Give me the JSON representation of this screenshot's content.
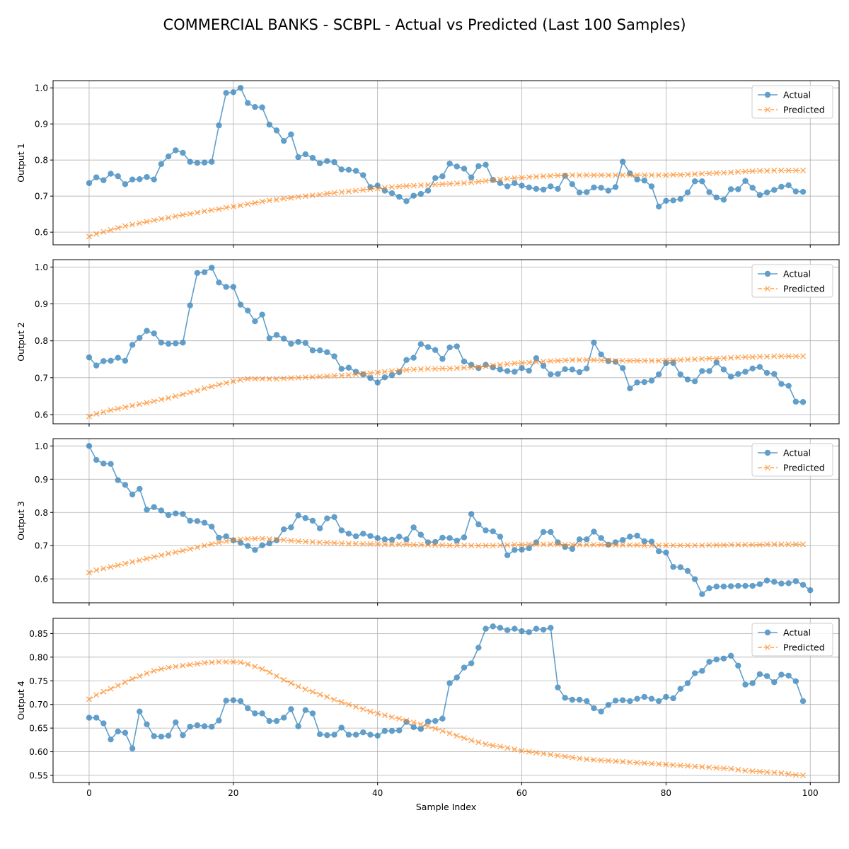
{
  "title": "COMMERCIAL BANKS - SCBPL - Actual vs Predicted (Last 100 Samples)",
  "colors": {
    "actual": "#1f77b4",
    "predicted": "#ff7f0e",
    "grid": "#b0b0b0"
  },
  "chart_data": [
    {
      "type": "line",
      "ylabel": "Output 1",
      "xlabel": "",
      "xlim": [
        -5,
        104
      ],
      "ylim": [
        0.565,
        1.02
      ],
      "xticks": [
        0,
        20,
        40,
        60,
        80,
        100
      ],
      "yticks": [
        0.6,
        0.7,
        0.8,
        0.9,
        1.0
      ],
      "ytick_labels": [
        "0.6",
        "0.7",
        "0.8",
        "0.9",
        "1.0"
      ],
      "grid": true,
      "legend": "upper right",
      "series": [
        {
          "name": "Actual",
          "marker": "circle",
          "values": [
            0.736,
            0.752,
            0.744,
            0.762,
            0.755,
            0.733,
            0.746,
            0.747,
            0.753,
            0.746,
            0.789,
            0.81,
            0.827,
            0.82,
            0.795,
            0.792,
            0.793,
            0.795,
            0.896,
            0.986,
            0.988,
            1.0,
            0.958,
            0.947,
            0.946,
            0.898,
            0.882,
            0.853,
            0.871,
            0.808,
            0.816,
            0.806,
            0.791,
            0.797,
            0.794,
            0.774,
            0.773,
            0.77,
            0.758,
            0.725,
            0.729,
            0.715,
            0.708,
            0.698,
            0.686,
            0.701,
            0.706,
            0.715,
            0.75,
            0.755,
            0.79,
            0.782,
            0.776,
            0.752,
            0.783,
            0.787,
            0.745,
            0.736,
            0.727,
            0.736,
            0.729,
            0.724,
            0.72,
            0.718,
            0.727,
            0.72,
            0.756,
            0.733,
            0.71,
            0.711,
            0.724,
            0.723,
            0.715,
            0.725,
            0.795,
            0.763,
            0.746,
            0.743,
            0.727,
            0.671,
            0.687,
            0.688,
            0.692,
            0.71,
            0.741,
            0.741,
            0.711,
            0.696,
            0.69,
            0.719,
            0.719,
            0.742,
            0.723,
            0.703,
            0.71,
            0.717,
            0.726,
            0.73,
            0.713,
            0.712
          ]
        },
        {
          "name": "Predicted",
          "marker": "x",
          "values": [
            0.588,
            0.595,
            0.601,
            0.606,
            0.612,
            0.617,
            0.621,
            0.625,
            0.629,
            0.633,
            0.637,
            0.64,
            0.644,
            0.648,
            0.651,
            0.654,
            0.658,
            0.661,
            0.664,
            0.668,
            0.671,
            0.674,
            0.678,
            0.681,
            0.685,
            0.688,
            0.69,
            0.693,
            0.695,
            0.698,
            0.7,
            0.702,
            0.704,
            0.707,
            0.709,
            0.711,
            0.713,
            0.715,
            0.717,
            0.719,
            0.721,
            0.723,
            0.725,
            0.727,
            0.728,
            0.729,
            0.73,
            0.731,
            0.732,
            0.733,
            0.734,
            0.735,
            0.736,
            0.738,
            0.74,
            0.742,
            0.744,
            0.746,
            0.748,
            0.75,
            0.751,
            0.753,
            0.754,
            0.755,
            0.756,
            0.757,
            0.757,
            0.758,
            0.758,
            0.758,
            0.758,
            0.758,
            0.758,
            0.758,
            0.758,
            0.758,
            0.758,
            0.758,
            0.758,
            0.758,
            0.758,
            0.759,
            0.759,
            0.76,
            0.761,
            0.762,
            0.763,
            0.764,
            0.765,
            0.766,
            0.767,
            0.768,
            0.769,
            0.77,
            0.77,
            0.771,
            0.771,
            0.771,
            0.771,
            0.771
          ]
        }
      ]
    },
    {
      "type": "line",
      "ylabel": "Output 2",
      "xlabel": "",
      "xlim": [
        -5,
        104
      ],
      "ylim": [
        0.575,
        1.02
      ],
      "xticks": [
        0,
        20,
        40,
        60,
        80,
        100
      ],
      "yticks": [
        0.6,
        0.7,
        0.8,
        0.9,
        1.0
      ],
      "ytick_labels": [
        "0.6",
        "0.7",
        "0.8",
        "0.9",
        "1.0"
      ],
      "grid": true,
      "legend": "upper right",
      "series": [
        {
          "name": "Actual",
          "marker": "circle",
          "values": [
            0.755,
            0.733,
            0.745,
            0.746,
            0.754,
            0.746,
            0.789,
            0.808,
            0.827,
            0.82,
            0.795,
            0.792,
            0.793,
            0.795,
            0.896,
            0.984,
            0.986,
            0.998,
            0.958,
            0.946,
            0.946,
            0.898,
            0.882,
            0.853,
            0.871,
            0.807,
            0.816,
            0.806,
            0.792,
            0.797,
            0.794,
            0.774,
            0.774,
            0.769,
            0.758,
            0.724,
            0.727,
            0.716,
            0.709,
            0.699,
            0.687,
            0.701,
            0.707,
            0.715,
            0.748,
            0.754,
            0.791,
            0.783,
            0.775,
            0.751,
            0.782,
            0.785,
            0.744,
            0.735,
            0.726,
            0.735,
            0.728,
            0.722,
            0.718,
            0.716,
            0.726,
            0.719,
            0.753,
            0.732,
            0.709,
            0.71,
            0.723,
            0.722,
            0.715,
            0.725,
            0.795,
            0.763,
            0.745,
            0.743,
            0.726,
            0.671,
            0.687,
            0.688,
            0.692,
            0.709,
            0.74,
            0.74,
            0.709,
            0.695,
            0.69,
            0.718,
            0.718,
            0.741,
            0.722,
            0.703,
            0.71,
            0.716,
            0.725,
            0.729,
            0.713,
            0.71,
            0.683,
            0.678,
            0.635,
            0.634
          ]
        },
        {
          "name": "Predicted",
          "marker": "x",
          "values": [
            0.595,
            0.602,
            0.607,
            0.612,
            0.616,
            0.62,
            0.624,
            0.628,
            0.632,
            0.636,
            0.641,
            0.645,
            0.65,
            0.655,
            0.66,
            0.665,
            0.671,
            0.676,
            0.681,
            0.686,
            0.69,
            0.694,
            0.697,
            0.697,
            0.697,
            0.697,
            0.697,
            0.698,
            0.699,
            0.7,
            0.701,
            0.702,
            0.703,
            0.704,
            0.705,
            0.706,
            0.707,
            0.709,
            0.711,
            0.712,
            0.714,
            0.716,
            0.718,
            0.72,
            0.721,
            0.722,
            0.723,
            0.724,
            0.724,
            0.725,
            0.725,
            0.726,
            0.727,
            0.728,
            0.729,
            0.731,
            0.733,
            0.735,
            0.737,
            0.739,
            0.74,
            0.741,
            0.743,
            0.744,
            0.745,
            0.746,
            0.747,
            0.748,
            0.748,
            0.748,
            0.748,
            0.747,
            0.747,
            0.746,
            0.746,
            0.746,
            0.746,
            0.746,
            0.746,
            0.746,
            0.747,
            0.747,
            0.748,
            0.749,
            0.75,
            0.751,
            0.752,
            0.752,
            0.753,
            0.754,
            0.755,
            0.756,
            0.756,
            0.757,
            0.757,
            0.758,
            0.758,
            0.758,
            0.758,
            0.758
          ]
        }
      ]
    },
    {
      "type": "line",
      "ylabel": "Output 3",
      "xlabel": "",
      "xlim": [
        -5,
        104
      ],
      "ylim": [
        0.528,
        1.022
      ],
      "xticks": [
        0,
        20,
        40,
        60,
        80,
        100
      ],
      "yticks": [
        0.6,
        0.7,
        0.8,
        0.9,
        1.0
      ],
      "ytick_labels": [
        "0.6",
        "0.7",
        "0.8",
        "0.9",
        "1.0"
      ],
      "grid": true,
      "legend": "upper right",
      "series": [
        {
          "name": "Actual",
          "marker": "circle",
          "values": [
            1.0,
            0.958,
            0.947,
            0.946,
            0.897,
            0.883,
            0.854,
            0.871,
            0.808,
            0.816,
            0.806,
            0.792,
            0.797,
            0.795,
            0.775,
            0.774,
            0.769,
            0.757,
            0.724,
            0.728,
            0.716,
            0.709,
            0.699,
            0.687,
            0.701,
            0.707,
            0.716,
            0.749,
            0.755,
            0.791,
            0.783,
            0.775,
            0.752,
            0.782,
            0.786,
            0.746,
            0.736,
            0.728,
            0.736,
            0.729,
            0.723,
            0.719,
            0.718,
            0.727,
            0.719,
            0.755,
            0.733,
            0.71,
            0.711,
            0.724,
            0.723,
            0.715,
            0.725,
            0.795,
            0.764,
            0.746,
            0.743,
            0.727,
            0.671,
            0.687,
            0.688,
            0.692,
            0.71,
            0.741,
            0.741,
            0.71,
            0.696,
            0.69,
            0.719,
            0.719,
            0.742,
            0.723,
            0.703,
            0.71,
            0.717,
            0.727,
            0.73,
            0.713,
            0.712,
            0.683,
            0.679,
            0.636,
            0.635,
            0.624,
            0.599,
            0.554,
            0.572,
            0.577,
            0.577,
            0.578,
            0.579,
            0.579,
            0.579,
            0.584,
            0.595,
            0.591,
            0.586,
            0.587,
            0.593,
            0.582,
            0.566
          ]
        },
        {
          "name": "Predicted",
          "marker": "x",
          "values": [
            0.619,
            0.626,
            0.631,
            0.636,
            0.641,
            0.646,
            0.651,
            0.656,
            0.661,
            0.666,
            0.671,
            0.676,
            0.68,
            0.685,
            0.69,
            0.695,
            0.7,
            0.705,
            0.709,
            0.713,
            0.716,
            0.719,
            0.72,
            0.721,
            0.721,
            0.72,
            0.719,
            0.717,
            0.715,
            0.713,
            0.712,
            0.711,
            0.71,
            0.709,
            0.708,
            0.707,
            0.706,
            0.706,
            0.705,
            0.705,
            0.705,
            0.704,
            0.704,
            0.704,
            0.704,
            0.703,
            0.703,
            0.703,
            0.702,
            0.702,
            0.701,
            0.701,
            0.701,
            0.7,
            0.7,
            0.7,
            0.7,
            0.701,
            0.702,
            0.703,
            0.703,
            0.704,
            0.704,
            0.704,
            0.704,
            0.704,
            0.703,
            0.703,
            0.703,
            0.703,
            0.703,
            0.703,
            0.703,
            0.702,
            0.702,
            0.702,
            0.702,
            0.701,
            0.701,
            0.701,
            0.701,
            0.701,
            0.701,
            0.701,
            0.701,
            0.701,
            0.702,
            0.702,
            0.702,
            0.703,
            0.703,
            0.703,
            0.703,
            0.703,
            0.704,
            0.704,
            0.704,
            0.704,
            0.704,
            0.704
          ]
        }
      ]
    },
    {
      "type": "line",
      "ylabel": "Output 4",
      "xlabel": "Sample Index",
      "xlim": [
        -5,
        104
      ],
      "ylim": [
        0.535,
        0.882
      ],
      "xticks": [
        0,
        20,
        40,
        60,
        80,
        100
      ],
      "yticks": [
        0.55,
        0.6,
        0.65,
        0.7,
        0.75,
        0.8,
        0.85
      ],
      "ytick_labels": [
        "0.55",
        "0.60",
        "0.65",
        "0.70",
        "0.75",
        "0.80",
        "0.85"
      ],
      "grid": true,
      "legend": "upper right",
      "series": [
        {
          "name": "Actual",
          "marker": "circle",
          "values": [
            0.672,
            0.672,
            0.66,
            0.626,
            0.643,
            0.64,
            0.607,
            0.685,
            0.658,
            0.633,
            0.632,
            0.634,
            0.662,
            0.635,
            0.653,
            0.656,
            0.654,
            0.653,
            0.666,
            0.708,
            0.709,
            0.707,
            0.692,
            0.681,
            0.681,
            0.665,
            0.665,
            0.672,
            0.69,
            0.654,
            0.688,
            0.681,
            0.637,
            0.635,
            0.636,
            0.651,
            0.636,
            0.636,
            0.641,
            0.636,
            0.634,
            0.644,
            0.644,
            0.645,
            0.663,
            0.652,
            0.648,
            0.664,
            0.665,
            0.67,
            0.745,
            0.757,
            0.778,
            0.787,
            0.82,
            0.86,
            0.865,
            0.862,
            0.857,
            0.86,
            0.855,
            0.853,
            0.86,
            0.858,
            0.862,
            0.736,
            0.714,
            0.71,
            0.71,
            0.707,
            0.692,
            0.685,
            0.699,
            0.708,
            0.709,
            0.707,
            0.712,
            0.716,
            0.712,
            0.707,
            0.716,
            0.713,
            0.733,
            0.745,
            0.766,
            0.771,
            0.79,
            0.795,
            0.797,
            0.803,
            0.782,
            0.742,
            0.745,
            0.764,
            0.76,
            0.747,
            0.763,
            0.761,
            0.749,
            0.707
          ]
        },
        {
          "name": "Predicted",
          "marker": "x",
          "values": [
            0.711,
            0.72,
            0.727,
            0.733,
            0.74,
            0.747,
            0.754,
            0.76,
            0.766,
            0.771,
            0.775,
            0.778,
            0.78,
            0.782,
            0.784,
            0.786,
            0.788,
            0.789,
            0.79,
            0.79,
            0.79,
            0.789,
            0.785,
            0.78,
            0.775,
            0.768,
            0.76,
            0.752,
            0.745,
            0.738,
            0.732,
            0.727,
            0.721,
            0.716,
            0.71,
            0.705,
            0.7,
            0.695,
            0.69,
            0.685,
            0.681,
            0.677,
            0.673,
            0.67,
            0.666,
            0.662,
            0.658,
            0.654,
            0.649,
            0.644,
            0.639,
            0.634,
            0.629,
            0.624,
            0.62,
            0.616,
            0.613,
            0.611,
            0.608,
            0.605,
            0.602,
            0.6,
            0.598,
            0.596,
            0.594,
            0.592,
            0.59,
            0.588,
            0.586,
            0.584,
            0.583,
            0.582,
            0.581,
            0.58,
            0.579,
            0.578,
            0.577,
            0.576,
            0.575,
            0.574,
            0.573,
            0.572,
            0.571,
            0.57,
            0.569,
            0.568,
            0.567,
            0.566,
            0.565,
            0.564,
            0.562,
            0.56,
            0.559,
            0.558,
            0.557,
            0.556,
            0.555,
            0.553,
            0.551,
            0.55
          ]
        }
      ]
    }
  ]
}
